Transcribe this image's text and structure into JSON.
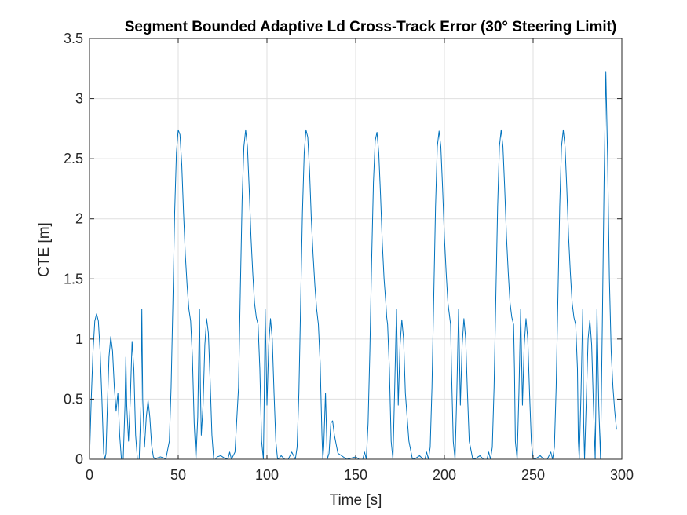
{
  "chart_data": {
    "type": "line",
    "title": "Segment Bounded Adaptive Ld Cross-Track Error (30° Steering Limit)",
    "xlabel": "Time [s]",
    "ylabel": "CTE [m]",
    "xlim": [
      0,
      300
    ],
    "ylim": [
      0,
      3.5
    ],
    "x_ticks": [
      0,
      50,
      100,
      150,
      200,
      250,
      300
    ],
    "y_ticks": [
      0,
      0.5,
      1,
      1.5,
      2,
      2.5,
      3,
      3.5
    ],
    "x_tick_labels": [
      "0",
      "50",
      "100",
      "150",
      "200",
      "250",
      "300"
    ],
    "y_tick_labels": [
      "0",
      "0.5",
      "1",
      "1.5",
      "2",
      "2.5",
      "3",
      "3.5"
    ],
    "grid": true,
    "line_color": "#0072BD",
    "series": [
      {
        "x": [
          0,
          1,
          2,
          3,
          4,
          5,
          6,
          7,
          8,
          8.7,
          9.3,
          10,
          11,
          12,
          13,
          14,
          15,
          16,
          17,
          18,
          19,
          20,
          20.5,
          21,
          22,
          23,
          24,
          25,
          26,
          27,
          28,
          29,
          29.5,
          30,
          31,
          32,
          33,
          34,
          35,
          36,
          37,
          38,
          40,
          42,
          43,
          45,
          46,
          47,
          48,
          49,
          50,
          51,
          52,
          53,
          54,
          55,
          56,
          57,
          58,
          59,
          60,
          61,
          62,
          62.5,
          63,
          64,
          65,
          66,
          67,
          68,
          69,
          70,
          71,
          72,
          74,
          76,
          78,
          79,
          80,
          82,
          84,
          85,
          86,
          87,
          88,
          89,
          90,
          91,
          92,
          93,
          94,
          95,
          96,
          97,
          98,
          98.5,
          99,
          100,
          101,
          102,
          103,
          104,
          105,
          106,
          107,
          108,
          110,
          112,
          114,
          116,
          117,
          118,
          119,
          120,
          121,
          122,
          123,
          124,
          125,
          126,
          127,
          128,
          129,
          130,
          131,
          131.5,
          132,
          133,
          134,
          135,
          136,
          137,
          138,
          140,
          145,
          150,
          152,
          153,
          154,
          155,
          156,
          157,
          158,
          159,
          160,
          161,
          162,
          163,
          164,
          165,
          166,
          167,
          167.5,
          168,
          169,
          170,
          171,
          172,
          173,
          174,
          175,
          176,
          177,
          178,
          180,
          182,
          184,
          186,
          188,
          189,
          190,
          191,
          192,
          193,
          194,
          195,
          196,
          197,
          198,
          199,
          200,
          201,
          202,
          203,
          203.5,
          204,
          205,
          206,
          207,
          208,
          209,
          210,
          211,
          212,
          213,
          214,
          216,
          218,
          220,
          222,
          224,
          225,
          226,
          227,
          228,
          229,
          230,
          231,
          232,
          233,
          234,
          235,
          236,
          237,
          238,
          239,
          239.5,
          240,
          241,
          242,
          243,
          244,
          245,
          246,
          247,
          248,
          249,
          250,
          252,
          254,
          256,
          258,
          260,
          261,
          262,
          263,
          264,
          265,
          266,
          267,
          268,
          269,
          270,
          271,
          272,
          273,
          274,
          275,
          275.5,
          276,
          277,
          278,
          278.5,
          279,
          280,
          281,
          282,
          283,
          284,
          285,
          285.5,
          286,
          287,
          288,
          289,
          290,
          291,
          292,
          293,
          294,
          295,
          296,
          297
        ],
        "y": [
          0.0,
          0.5,
          0.9,
          1.15,
          1.21,
          1.15,
          0.9,
          0.5,
          0.05,
          0.0,
          0.05,
          0.4,
          0.85,
          1.02,
          0.9,
          0.6,
          0.4,
          0.55,
          0.2,
          0.0,
          0.0,
          0.45,
          0.85,
          0.45,
          0.15,
          0.5,
          0.98,
          0.75,
          0.2,
          0.0,
          0.0,
          0.45,
          1.25,
          0.5,
          0.1,
          0.35,
          0.49,
          0.35,
          0.12,
          0.02,
          0.0,
          0.01,
          0.02,
          0.01,
          0.0,
          0.15,
          0.6,
          1.3,
          2.05,
          2.55,
          2.74,
          2.7,
          2.45,
          2.05,
          1.7,
          1.45,
          1.25,
          1.15,
          0.85,
          0.3,
          0.0,
          0.35,
          1.25,
          0.6,
          0.2,
          0.45,
          0.95,
          1.17,
          1.05,
          0.65,
          0.2,
          0.0,
          0.0,
          0.02,
          0.03,
          0.01,
          0.0,
          0.06,
          0.0,
          0.06,
          0.6,
          1.4,
          2.15,
          2.6,
          2.74,
          2.6,
          2.25,
          1.85,
          1.55,
          1.3,
          1.18,
          1.12,
          0.75,
          0.15,
          0.0,
          0.55,
          1.25,
          0.45,
          0.95,
          1.17,
          1.0,
          0.55,
          0.15,
          0.0,
          0.01,
          0.03,
          0.0,
          0.0,
          0.06,
          0.0,
          0.1,
          0.55,
          1.3,
          2.05,
          2.55,
          2.74,
          2.68,
          2.4,
          2.0,
          1.7,
          1.45,
          1.25,
          1.12,
          0.8,
          0.2,
          0.0,
          0.1,
          0.55,
          0.0,
          0.05,
          0.3,
          0.32,
          0.2,
          0.05,
          0.0,
          0.02,
          0.0,
          0.0,
          0.0,
          0.06,
          0.0,
          0.3,
          0.9,
          1.65,
          2.3,
          2.65,
          2.72,
          2.55,
          2.2,
          1.8,
          1.5,
          1.3,
          1.18,
          1.12,
          0.75,
          0.15,
          0.0,
          0.6,
          1.25,
          0.45,
          0.95,
          1.16,
          1.0,
          0.55,
          0.15,
          0.0,
          0.01,
          0.03,
          0.0,
          0.0,
          0.06,
          0.0,
          0.1,
          0.6,
          1.35,
          2.1,
          2.6,
          2.73,
          2.6,
          2.25,
          1.85,
          1.55,
          1.3,
          1.18,
          1.12,
          0.75,
          0.15,
          0.0,
          0.55,
          1.25,
          0.45,
          0.95,
          1.17,
          1.0,
          0.55,
          0.15,
          0.0,
          0.01,
          0.03,
          0.0,
          0.0,
          0.06,
          0.0,
          0.1,
          0.6,
          1.35,
          2.1,
          2.6,
          2.74,
          2.6,
          2.25,
          1.85,
          1.55,
          1.3,
          1.18,
          1.12,
          0.75,
          0.15,
          0.0,
          0.55,
          1.25,
          0.45,
          0.95,
          1.17,
          1.0,
          0.55,
          0.15,
          0.0,
          0.01,
          0.03,
          0.0,
          0.0,
          0.06,
          0.0,
          0.1,
          0.6,
          1.35,
          2.1,
          2.6,
          2.74,
          2.6,
          2.25,
          1.85,
          1.55,
          1.3,
          1.18,
          1.12,
          0.75,
          0.15,
          0.0,
          0.55,
          1.25,
          0.3,
          0.0,
          0.5,
          1.0,
          1.16,
          0.95,
          0.45,
          0.0,
          0.6,
          1.25,
          0.45,
          0.0,
          1.1,
          2.3,
          3.22,
          2.5,
          1.5,
          0.9,
          0.6,
          0.4,
          0.25
        ]
      }
    ]
  }
}
